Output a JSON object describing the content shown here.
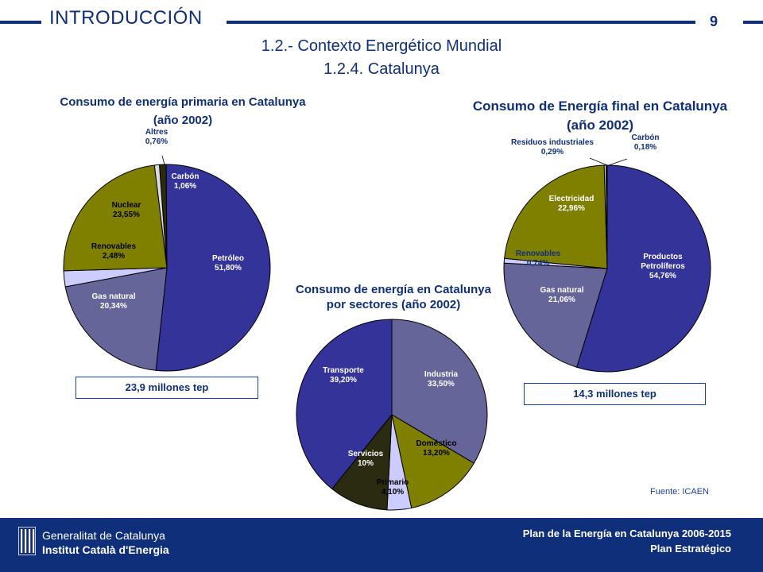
{
  "header": {
    "section_title": "INTRODUCCIÓN",
    "page_number": "9",
    "subtitle_1": "1.2.- Contexto Energético Mundial",
    "subtitle_2": "1.2.4. Catalunya"
  },
  "chart_data": [
    {
      "type": "pie",
      "title_line1": "Consumo de energía primaria en Catalunya",
      "title_line2": "(año 2002)",
      "slices": [
        {
          "name": "Carbón",
          "value": 1.06,
          "label": "1,06%",
          "color": "#2b2b11"
        },
        {
          "name": "Petróleo",
          "value": 51.8,
          "label": "51,80%",
          "color": "#343399"
        },
        {
          "name": "Gas natural",
          "value": 20.34,
          "label": "20,34%",
          "color": "#656599"
        },
        {
          "name": "Renovables",
          "value": 2.48,
          "label": "2,48%",
          "color": "#ccccff"
        },
        {
          "name": "Nuclear",
          "value": 23.55,
          "label": "23,55%",
          "color": "#7f7f00"
        },
        {
          "name": "Altres",
          "value": 0.76,
          "label": "0,76%",
          "color": "#dcdcdc"
        }
      ],
      "total_note": "23,9 millones tep"
    },
    {
      "type": "pie",
      "title_line1": "Consumo de energía en Catalunya",
      "title_line2": "por sectores (año 2002)",
      "slices": [
        {
          "name": "Industria",
          "value": 33.5,
          "label": "33,50%",
          "color": "#656599"
        },
        {
          "name": "Doméstico",
          "value": 13.2,
          "label": "13,20%",
          "color": "#7f7f00"
        },
        {
          "name": "Primario",
          "value": 4.1,
          "label": "4,10%",
          "color": "#ccccff"
        },
        {
          "name": "Servicios",
          "value": 10,
          "label": "10%",
          "color": "#2b2b11"
        },
        {
          "name": "Transporte",
          "value": 39.2,
          "label": "39,20%",
          "color": "#343399"
        }
      ]
    },
    {
      "type": "pie",
      "title_line1": "Consumo  de Energía final en Catalunya",
      "title_line2": "(año 2002)",
      "slices": [
        {
          "name": "Productos Petrolíferos",
          "label_line1": "Productos",
          "label_line2": "Petrolíferos",
          "value": 54.76,
          "label": "54,76%",
          "color": "#343399"
        },
        {
          "name": "Gas natural",
          "value": 21.06,
          "label": "21,06%",
          "color": "#656599"
        },
        {
          "name": "Renovables",
          "value": 0.74,
          "label": "0,74%",
          "color": "#ccccff"
        },
        {
          "name": "Electricidad",
          "value": 22.96,
          "label": "22,96%",
          "color": "#7f7f00"
        },
        {
          "name": "Residuos industriales",
          "value": 0.29,
          "label": "0,29%",
          "color": "#dcdcdc"
        },
        {
          "name": "Carbón",
          "value": 0.18,
          "label": "0,18%",
          "color": "#2b2b11"
        }
      ],
      "total_note": "14,3 millones tep"
    }
  ],
  "source_note": "Fuente: ICAEN",
  "footer": {
    "org_line1": "Generalitat de Catalunya",
    "org_line2": "Institut Català d'Energia",
    "plan_line1": "Plan de la Energía en Catalunya 2006-2015",
    "plan_line2": "Plan Estratégico",
    "bg_color": "#0f2f7a"
  }
}
